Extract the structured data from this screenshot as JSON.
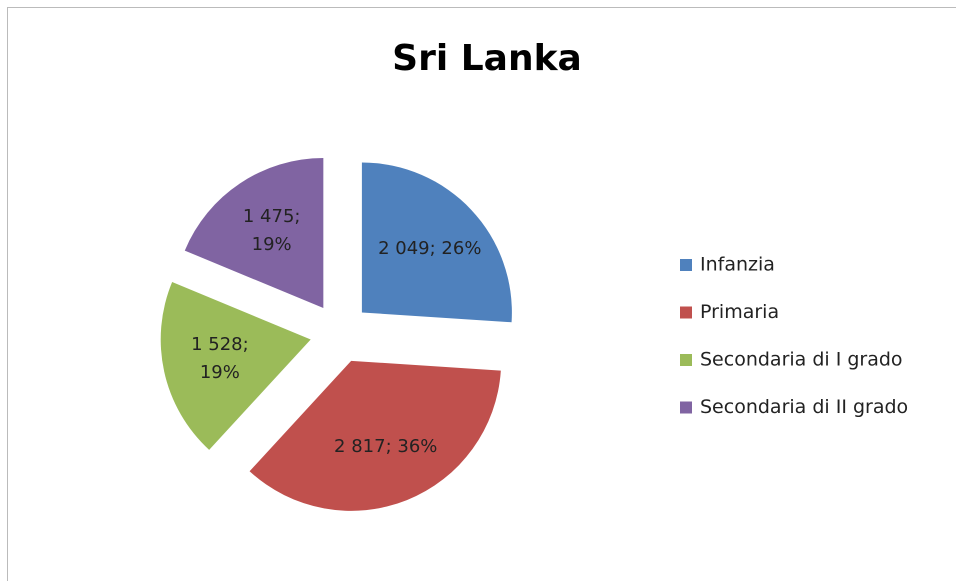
{
  "chart_data": {
    "type": "pie",
    "title": "Sri Lanka",
    "categories": [
      "Infanzia",
      "Primaria",
      "Secondaria di I grado",
      "Secondaria di II grado"
    ],
    "values": [
      2049,
      2817,
      1528,
      1475
    ],
    "value_labels": [
      "2 049; 26%",
      "2 817; 36%",
      "1 528; 19%",
      "1 475; 19%"
    ],
    "colors": [
      "#4f81bd",
      "#c0504d",
      "#9bbb59",
      "#8064a2"
    ],
    "legend": "right"
  }
}
